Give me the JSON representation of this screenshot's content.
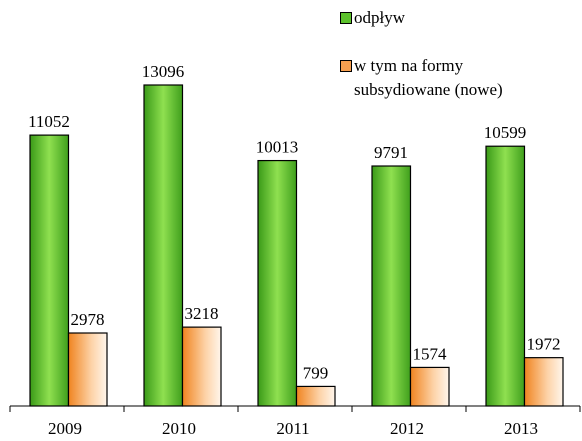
{
  "chart_data": {
    "type": "bar",
    "categories": [
      "2009",
      "2010",
      "2011",
      "2012",
      "2013"
    ],
    "series": [
      {
        "name": "odpływ",
        "color": "#5cc22c",
        "values": [
          11052,
          13096,
          10013,
          9791,
          10599
        ]
      },
      {
        "name": "w tym na formy subsydiowane (nowe)",
        "color": "#f7a050",
        "values": [
          2978,
          3218,
          799,
          1574,
          1972
        ]
      }
    ]
  }
}
